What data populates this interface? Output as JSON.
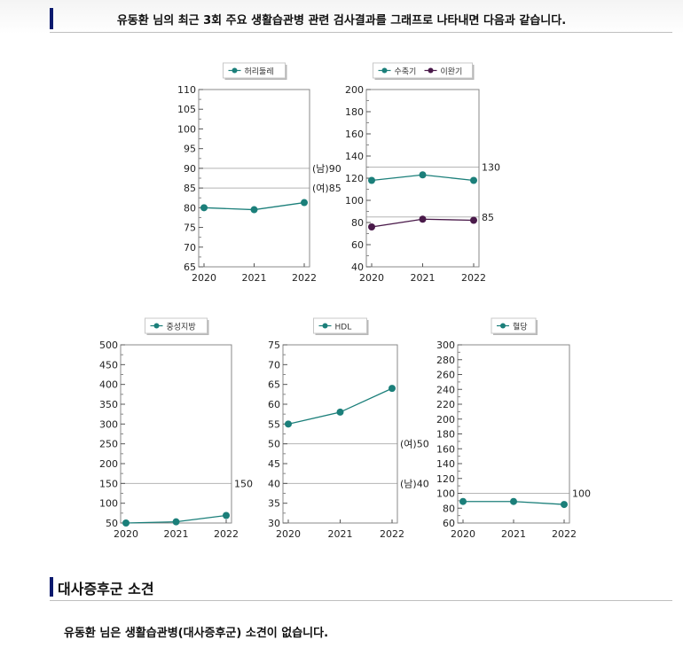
{
  "header": {
    "title": "유동환  님의 최근 3회 주요 생활습관병 관련 검사결과를 그래프로 나타내면 다음과 같습니다."
  },
  "section": {
    "title": "대사증후군 소견",
    "summary": "유동환  님은 생활습관병(대사증후군) 소견이 없습니다."
  },
  "colors": {
    "accent": "#0b1a6e",
    "series_teal": "#1b7f7a",
    "series_purple": "#4a1a4a",
    "ref_line": "#b5b5b5"
  },
  "chart_data": [
    {
      "type": "line",
      "x": [
        "2020",
        "2021",
        "2022"
      ],
      "series": [
        {
          "name": "허리둘레",
          "values": [
            80,
            79.5,
            81.3
          ],
          "color": "#1b7f7a"
        }
      ],
      "ylim": [
        65,
        110
      ],
      "yticks": [
        65,
        70,
        75,
        80,
        85,
        90,
        95,
        100,
        105,
        110
      ],
      "reference_lines": [
        {
          "value": 90,
          "label": "(남)90"
        },
        {
          "value": 85,
          "label": "(여)85"
        }
      ]
    },
    {
      "type": "line",
      "x": [
        "2020",
        "2021",
        "2022"
      ],
      "series": [
        {
          "name": "수축기",
          "values": [
            118,
            123,
            118
          ],
          "color": "#1b7f7a"
        },
        {
          "name": "이완기",
          "values": [
            76,
            83,
            82
          ],
          "color": "#4a1a4a"
        }
      ],
      "ylim": [
        40,
        200
      ],
      "yticks": [
        40,
        60,
        80,
        100,
        120,
        140,
        160,
        180,
        200
      ],
      "reference_lines": [
        {
          "value": 130,
          "label": "130"
        },
        {
          "value": 85,
          "label": "85"
        }
      ]
    },
    {
      "type": "line",
      "x": [
        "2020",
        "2021",
        "2022"
      ],
      "series": [
        {
          "name": "중성지방",
          "values": [
            50,
            53,
            69
          ],
          "color": "#1b7f7a"
        }
      ],
      "ylim": [
        50,
        500
      ],
      "yticks": [
        50,
        100,
        150,
        200,
        250,
        300,
        350,
        400,
        450,
        500
      ],
      "reference_lines": [
        {
          "value": 150,
          "label": "150"
        }
      ]
    },
    {
      "type": "line",
      "x": [
        "2020",
        "2021",
        "2022"
      ],
      "series": [
        {
          "name": "HDL",
          "values": [
            55,
            58,
            64
          ],
          "color": "#1b7f7a"
        }
      ],
      "ylim": [
        30,
        75
      ],
      "yticks": [
        30,
        35,
        40,
        45,
        50,
        55,
        60,
        65,
        70,
        75
      ],
      "reference_lines": [
        {
          "value": 50,
          "label": "(여)50"
        },
        {
          "value": 40,
          "label": "(남)40"
        }
      ]
    },
    {
      "type": "line",
      "x": [
        "2020",
        "2021",
        "2022"
      ],
      "series": [
        {
          "name": "혈당",
          "values": [
            89,
            89,
            85
          ],
          "color": "#1b7f7a"
        }
      ],
      "ylim": [
        60,
        300
      ],
      "yticks": [
        60,
        80,
        100,
        120,
        140,
        160,
        180,
        200,
        220,
        240,
        260,
        280,
        300
      ],
      "reference_lines": [
        {
          "value": 100,
          "label": "100"
        }
      ]
    }
  ]
}
